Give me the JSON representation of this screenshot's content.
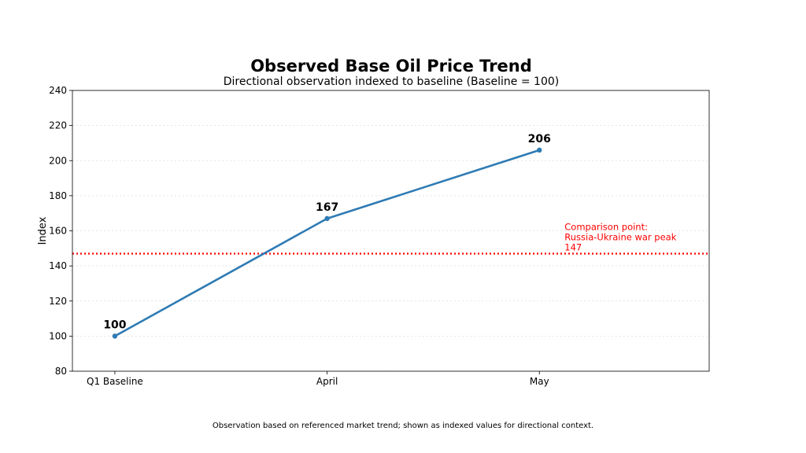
{
  "chart_data": {
    "type": "line",
    "title": "Observed Base Oil Price Trend",
    "subtitle": "Directional observation indexed to baseline (Baseline = 100)",
    "xlabel": "",
    "ylabel": "Index",
    "categories": [
      "Q1 Baseline",
      "April",
      "May"
    ],
    "series": [
      {
        "values": [
          100,
          167,
          206
        ]
      }
    ],
    "data_labels": [
      "100",
      "167",
      "206"
    ],
    "ylim": [
      80,
      240
    ],
    "yticks": [
      80,
      100,
      120,
      140,
      160,
      180,
      200,
      220,
      240
    ],
    "ytick_labels": [
      "80",
      "100",
      "120",
      "140",
      "160",
      "180",
      "200",
      "220",
      "240"
    ],
    "x_range": [
      -0.2,
      2.8
    ],
    "grid": "horizontal dotted",
    "reference_line": {
      "value": 147,
      "style": "dotted",
      "annotation": [
        "Comparison point:",
        "Russia-Ukraine war peak",
        "147"
      ]
    },
    "footnote": "Observation based on referenced market trend; shown as indexed values for directional context.",
    "colors": {
      "line": "#2e7bb4",
      "reference": "#ff0000",
      "grid": "#dddddd",
      "axis": "#000000"
    }
  }
}
